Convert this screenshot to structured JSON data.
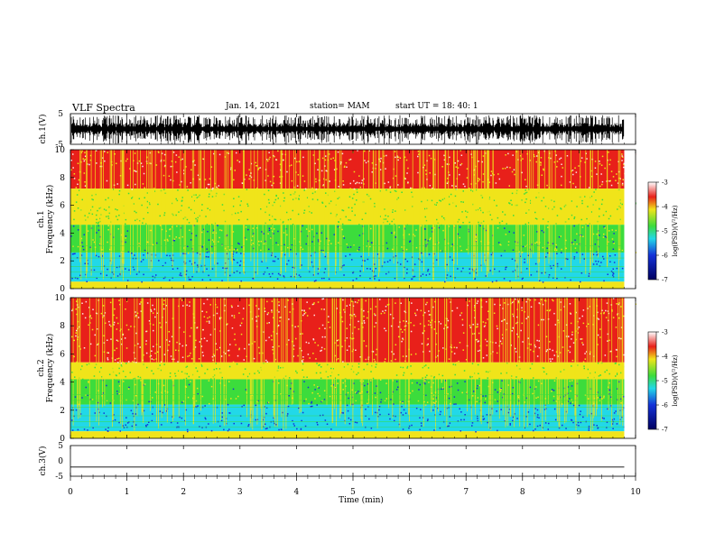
{
  "header": {
    "title": "VLF Spectra",
    "date": "Jan. 14, 2021",
    "station": "station= MAM",
    "start": "start UT = 18: 40: 1"
  },
  "chart_data": [
    {
      "type": "line",
      "panel": "ch1-waveform",
      "ylabel": "ch.1(V)",
      "ylim": [
        -5,
        5
      ],
      "yticks": [
        "5",
        "-5"
      ],
      "x_range_min": [
        0,
        10
      ],
      "data_extent_min": 9.8,
      "description_values": {
        "baseline_v": 0,
        "typical_amplitude_v": 1.5,
        "spike_amplitude_v": 4.5
      }
    },
    {
      "type": "heatmap",
      "panel": "ch1-spectrogram",
      "ylabel_line1": "ch.1",
      "ylabel_line2": "Frequency (kHz)",
      "ylim": [
        0,
        10
      ],
      "yticks": [
        "0",
        "2",
        "4",
        "6",
        "8",
        "10"
      ],
      "bands_khz": {
        "blue_low": [
          0.5,
          2.6
        ],
        "cyan_green": [
          2.6,
          4.6
        ],
        "green_yellow": [
          4.6,
          7.2
        ],
        "red": [
          7.2,
          10
        ]
      },
      "colorbar": {
        "label": "log(PSD)(V²/Hz)",
        "ticks": [
          "-3",
          "-4",
          "-5",
          "-6",
          "-7"
        ],
        "range": [
          -7,
          -3
        ]
      }
    },
    {
      "type": "heatmap",
      "panel": "ch2-spectrogram",
      "ylabel_line1": "ch.2",
      "ylabel_line2": "Frequency (kHz)",
      "ylim": [
        0,
        10
      ],
      "yticks": [
        "0",
        "2",
        "4",
        "6",
        "8",
        "10"
      ],
      "bands_khz": {
        "blue_low": [
          0.5,
          2.4
        ],
        "cyan_green": [
          2.4,
          4.2
        ],
        "green_yellow": [
          4.2,
          5.4
        ],
        "red": [
          5.4,
          10
        ]
      },
      "colorbar": {
        "label": "log(PSD)(V²/Hz)",
        "ticks": [
          "-3",
          "-4",
          "-5",
          "-6",
          "-7"
        ],
        "range": [
          -7,
          -3
        ]
      }
    },
    {
      "type": "line",
      "panel": "ch3-waveform",
      "ylabel": "ch.3(V)",
      "ylim": [
        -5,
        5
      ],
      "yticks": [
        "5",
        "0",
        "-5"
      ],
      "values": {
        "level_v": -2,
        "x_end_min": 9.8
      }
    }
  ],
  "x_axis": {
    "label": "Time (min)",
    "range": [
      0,
      10
    ],
    "ticks": [
      "0",
      "1",
      "2",
      "3",
      "4",
      "5",
      "6",
      "7",
      "8",
      "9",
      "10"
    ]
  },
  "colors": {
    "red": "#e8201a",
    "yellow": "#f0e41a",
    "green": "#3cdc3c",
    "cyan": "#22d8e8",
    "blue": "#1432d8",
    "navy": "#000060"
  }
}
